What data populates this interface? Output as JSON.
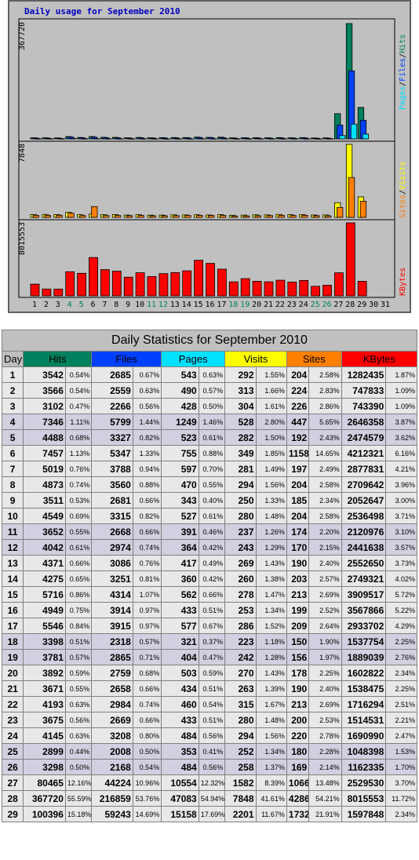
{
  "chart": {
    "title": "Daily usage for September 2010",
    "days": [
      1,
      2,
      3,
      4,
      5,
      6,
      7,
      8,
      9,
      10,
      11,
      12,
      13,
      14,
      15,
      16,
      17,
      18,
      19,
      20,
      21,
      22,
      23,
      24,
      25,
      26,
      27,
      28,
      29,
      30,
      31
    ],
    "weekend_days": [
      4,
      5,
      11,
      12,
      18,
      19,
      25,
      26
    ],
    "panels": [
      {
        "max": 367720,
        "legend": [
          {
            "text": "Pages"
          },
          {
            "text": "/"
          },
          {
            "text": "Files"
          },
          {
            "text": "/"
          },
          {
            "text": "Hits"
          }
        ]
      },
      {
        "max": 7848,
        "legend": [
          {
            "text": "Sites"
          },
          {
            "text": "/"
          },
          {
            "text": "Visits"
          }
        ]
      },
      {
        "max": 8015553,
        "legend": [
          {
            "text": "KBytes"
          }
        ]
      }
    ]
  },
  "table": {
    "title": "Daily Statistics for September 2010",
    "columns": [
      {
        "name": "Day",
        "color": "#c0c0c0"
      },
      {
        "name": "Hits",
        "color": "#00805c"
      },
      {
        "name": "Files",
        "color": "#0040ff"
      },
      {
        "name": "Pages",
        "color": "#00e0ff"
      },
      {
        "name": "Visits",
        "color": "#ffff00"
      },
      {
        "name": "Sites",
        "color": "#ff8000"
      },
      {
        "name": "KBytes",
        "color": "#ff0000"
      }
    ],
    "rows": [
      [
        1,
        3542,
        "0.54%",
        2685,
        "0.67%",
        543,
        "0.63%",
        292,
        "1.55%",
        204,
        "2.58%",
        1282435,
        "1.87%"
      ],
      [
        2,
        3566,
        "0.54%",
        2559,
        "0.63%",
        490,
        "0.57%",
        313,
        "1.66%",
        224,
        "2.83%",
        747833,
        "1.09%"
      ],
      [
        3,
        3102,
        "0.47%",
        2266,
        "0.56%",
        428,
        "0.50%",
        304,
        "1.61%",
        226,
        "2.86%",
        743390,
        "1.09%"
      ],
      [
        4,
        7346,
        "1.11%",
        5799,
        "1.44%",
        1249,
        "1.46%",
        528,
        "2.80%",
        447,
        "5.65%",
        2646358,
        "3.87%"
      ],
      [
        5,
        4488,
        "0.68%",
        3327,
        "0.82%",
        523,
        "0.61%",
        282,
        "1.50%",
        192,
        "2.43%",
        2474579,
        "3.62%"
      ],
      [
        6,
        7457,
        "1.13%",
        5347,
        "1.33%",
        755,
        "0.88%",
        349,
        "1.85%",
        1158,
        "14.65%",
        4212321,
        "6.16%"
      ],
      [
        7,
        5019,
        "0.76%",
        3788,
        "0.94%",
        597,
        "0.70%",
        281,
        "1.49%",
        197,
        "2.49%",
        2877831,
        "4.21%"
      ],
      [
        8,
        4873,
        "0.74%",
        3560,
        "0.88%",
        470,
        "0.55%",
        294,
        "1.56%",
        204,
        "2.58%",
        2709642,
        "3.96%"
      ],
      [
        9,
        3511,
        "0.53%",
        2681,
        "0.66%",
        343,
        "0.40%",
        250,
        "1.33%",
        185,
        "2.34%",
        2052647,
        "3.00%"
      ],
      [
        10,
        4549,
        "0.69%",
        3315,
        "0.82%",
        527,
        "0.61%",
        280,
        "1.48%",
        204,
        "2.58%",
        2536498,
        "3.71%"
      ],
      [
        11,
        3652,
        "0.55%",
        2668,
        "0.66%",
        391,
        "0.46%",
        237,
        "1.26%",
        174,
        "2.20%",
        2120976,
        "3.10%"
      ],
      [
        12,
        4042,
        "0.61%",
        2974,
        "0.74%",
        364,
        "0.42%",
        243,
        "1.29%",
        170,
        "2.15%",
        2441638,
        "3.57%"
      ],
      [
        13,
        4371,
        "0.66%",
        3086,
        "0.76%",
        417,
        "0.49%",
        269,
        "1.43%",
        190,
        "2.40%",
        2552650,
        "3.73%"
      ],
      [
        14,
        4275,
        "0.65%",
        3251,
        "0.81%",
        360,
        "0.42%",
        260,
        "1.38%",
        203,
        "2.57%",
        2749321,
        "4.02%"
      ],
      [
        15,
        5716,
        "0.86%",
        4314,
        "1.07%",
        562,
        "0.66%",
        278,
        "1.47%",
        213,
        "2.69%",
        3909517,
        "5.72%"
      ],
      [
        16,
        4949,
        "0.75%",
        3914,
        "0.97%",
        433,
        "0.51%",
        253,
        "1.34%",
        199,
        "2.52%",
        3567866,
        "5.22%"
      ],
      [
        17,
        5546,
        "0.84%",
        3915,
        "0.97%",
        577,
        "0.67%",
        286,
        "1.52%",
        209,
        "2.64%",
        2933702,
        "4.29%"
      ],
      [
        18,
        3398,
        "0.51%",
        2318,
        "0.57%",
        321,
        "0.37%",
        223,
        "1.18%",
        150,
        "1.90%",
        1537754,
        "2.25%"
      ],
      [
        19,
        3781,
        "0.57%",
        2865,
        "0.71%",
        404,
        "0.47%",
        242,
        "1.28%",
        156,
        "1.97%",
        1889039,
        "2.76%"
      ],
      [
        20,
        3892,
        "0.59%",
        2759,
        "0.68%",
        503,
        "0.59%",
        270,
        "1.43%",
        178,
        "2.25%",
        1602822,
        "2.34%"
      ],
      [
        21,
        3671,
        "0.55%",
        2658,
        "0.66%",
        434,
        "0.51%",
        263,
        "1.39%",
        190,
        "2.40%",
        1538475,
        "2.25%"
      ],
      [
        22,
        4193,
        "0.63%",
        2984,
        "0.74%",
        460,
        "0.54%",
        315,
        "1.67%",
        213,
        "2.69%",
        1716294,
        "2.51%"
      ],
      [
        23,
        3675,
        "0.56%",
        2669,
        "0.66%",
        433,
        "0.51%",
        280,
        "1.48%",
        200,
        "2.53%",
        1514531,
        "2.21%"
      ],
      [
        24,
        4145,
        "0.63%",
        3208,
        "0.80%",
        484,
        "0.56%",
        294,
        "1.56%",
        220,
        "2.78%",
        1690990,
        "2.47%"
      ],
      [
        25,
        2899,
        "0.44%",
        2008,
        "0.50%",
        353,
        "0.41%",
        252,
        "1.34%",
        180,
        "2.28%",
        1048398,
        "1.53%"
      ],
      [
        26,
        3298,
        "0.50%",
        2168,
        "0.54%",
        484,
        "0.56%",
        258,
        "1.37%",
        169,
        "2.14%",
        1162335,
        "1.70%"
      ],
      [
        27,
        80465,
        "12.16%",
        44224,
        "10.96%",
        10554,
        "12.32%",
        1582,
        "8.39%",
        1066,
        "13.48%",
        2529530,
        "3.70%"
      ],
      [
        28,
        367720,
        "55.59%",
        216859,
        "53.76%",
        47083,
        "54.94%",
        7848,
        "41.61%",
        4286,
        "54.21%",
        8015553,
        "11.72%"
      ],
      [
        29,
        100396,
        "15.18%",
        59243,
        "14.69%",
        15158,
        "17.69%",
        2201,
        "11.67%",
        1732,
        "21.91%",
        1597848,
        "2.34%"
      ]
    ]
  }
}
